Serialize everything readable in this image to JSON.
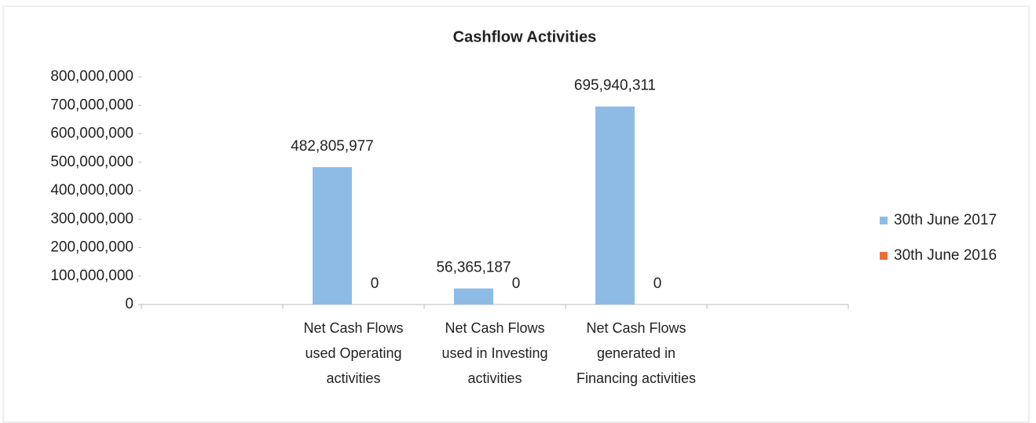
{
  "chart_data": {
    "type": "bar",
    "title": "Cashflow Activities",
    "categories": [
      null,
      "Net Cash Flows used Operating activities",
      "Net Cash Flows used in Investing activities",
      "Net Cash Flows generated in Financing activities",
      null
    ],
    "series": [
      {
        "name": "30th June 2017",
        "color": "#8dbbe6",
        "values": [
          null,
          482805977,
          56365187,
          695940311,
          null
        ],
        "value_labels": [
          null,
          "482,805,977",
          "56,365,187",
          "695,940,311",
          null
        ]
      },
      {
        "name": "30th June 2016",
        "color": "#e8703a",
        "values": [
          null,
          0,
          0,
          0,
          null
        ]
      }
    ],
    "ylim": [
      0,
      800000000
    ],
    "yticks": [
      0,
      {
        "value": 100000000,
        "label": "100,000,000"
      },
      {
        "value": 200000000,
        "label": "200,000,000"
      },
      {
        "value": 300000000,
        "label": "300,000,000"
      },
      {
        "value": 400000000,
        "label": "400,000,000"
      },
      {
        "value": 500000000,
        "label": "500,000,000"
      },
      {
        "value": 600000000,
        "label": "600,000,000"
      },
      {
        "value": 700000000,
        "label": "700,000,000"
      },
      {
        "value": 800000000,
        "label": "800,000,000"
      }
    ],
    "grid": false,
    "legend": "right"
  }
}
